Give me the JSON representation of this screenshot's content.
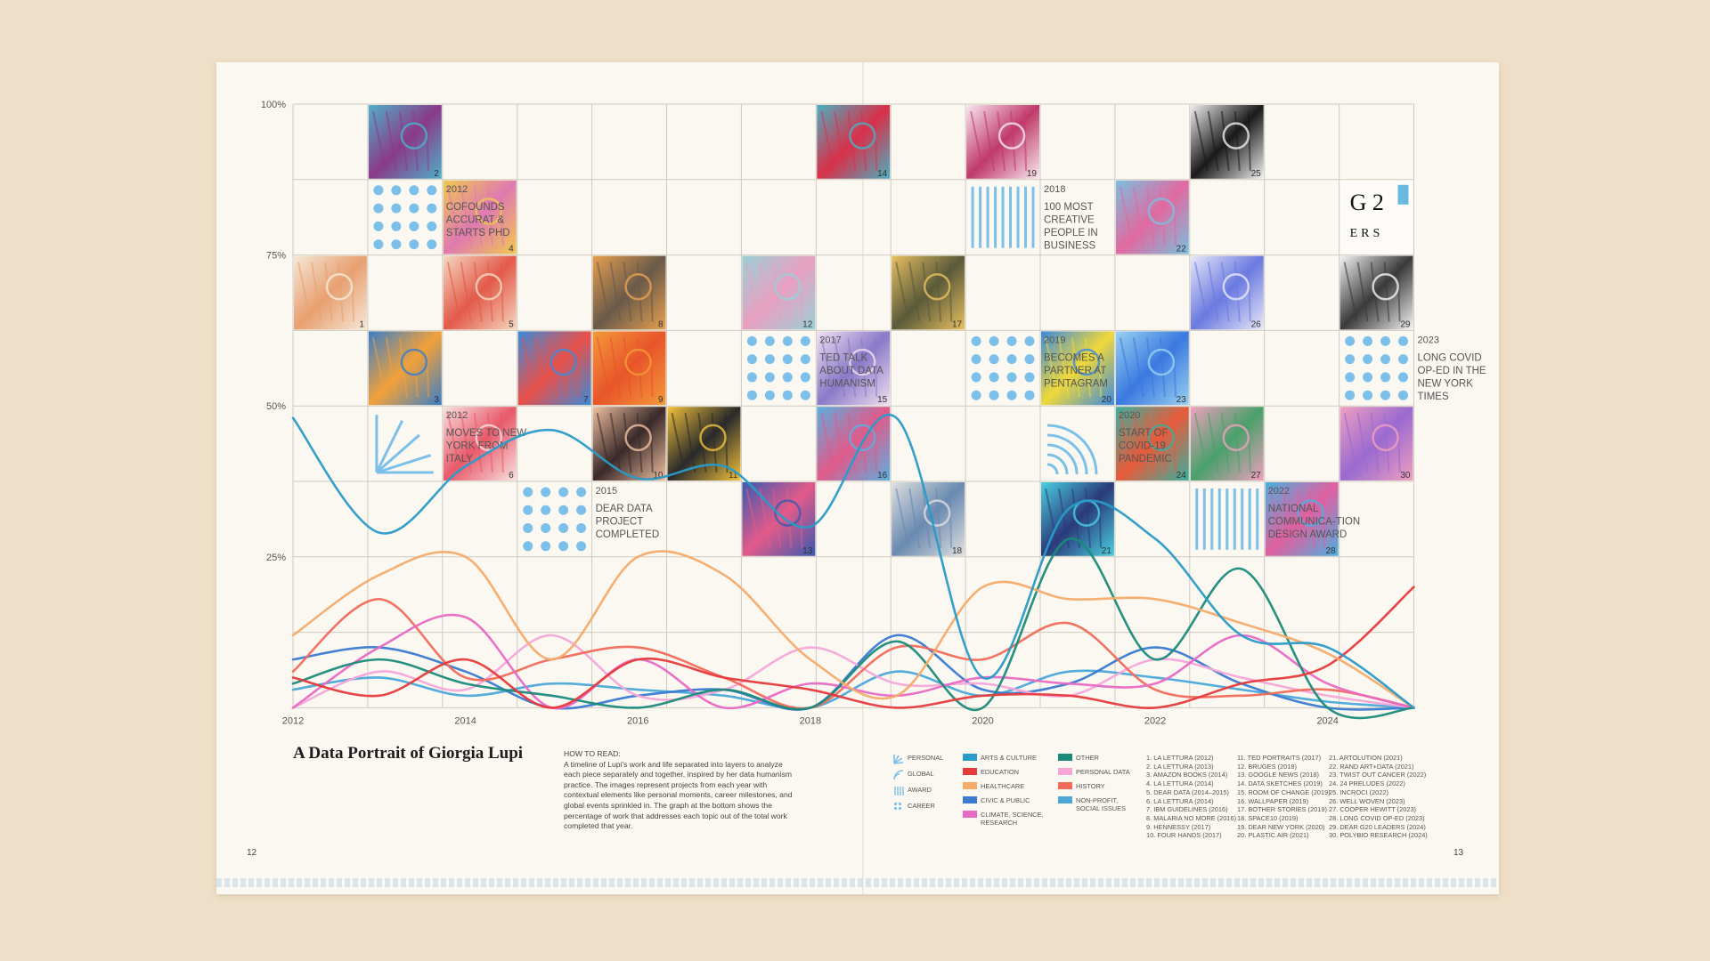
{
  "title": "A Data Portrait of Giorgia Lupi",
  "how_to_read": {
    "heading": "HOW TO READ:",
    "body": "A timeline of Lupi's work and life separated into layers to analyze each piece separately and together, inspired by her data humanism practice. The images represent projects from each year with contextual elements like personal moments, career milestones, and global events sprinkled in. The graph at the bottom shows the percentage of work that addresses each topic out of the total work completed that year."
  },
  "page_numbers": {
    "left": "12",
    "right": "13"
  },
  "milestones": [
    {
      "year": "2012",
      "text": "COFOUNDS ACCURAT & STARTS PHD",
      "col": 1,
      "row": 1,
      "icon": "dots-icon"
    },
    {
      "year": "2012",
      "text": "MOVES TO NEW YORK FROM ITALY",
      "col": 1,
      "row": 4,
      "icon": "fan-icon"
    },
    {
      "year": "2015",
      "text": "DEAR DATA PROJECT COMPLETED",
      "col": 3,
      "row": 5,
      "icon": "dots-icon"
    },
    {
      "year": "2017",
      "text": "TED TALK ABOUT DATA HUMANISM",
      "col": 6,
      "row": 3,
      "icon": "dots-icon"
    },
    {
      "year": "2018",
      "text": "100 MOST CREATIVE PEOPLE IN BUSINESS",
      "col": 9,
      "row": 1,
      "icon": "bars-icon"
    },
    {
      "year": "2019",
      "text": "BECOMES A PARTNER AT PENTAGRAM",
      "col": 9,
      "row": 3,
      "icon": "dots-icon"
    },
    {
      "year": "2020",
      "text": "START OF COVID-19 PANDEMIC",
      "col": 10,
      "row": 4,
      "icon": "arcs-icon"
    },
    {
      "year": "2022",
      "text": "NATIONAL COMMUNICA-TION DESIGN AWARD",
      "col": 12,
      "row": 5,
      "icon": "bars-icon"
    },
    {
      "year": "2023",
      "text": "LONG COVID OP-ED IN THE NEW YORK TIMES",
      "col": 14,
      "row": 3,
      "icon": "dots-icon"
    }
  ],
  "artworks": [
    {
      "n": "1",
      "col": 0,
      "row": 2,
      "c1": "#e8a070",
      "c2": "#f5e8d8"
    },
    {
      "n": "2",
      "col": 1,
      "row": 0,
      "c1": "#8a3a8a",
      "c2": "#4fb0c8"
    },
    {
      "n": "3",
      "col": 1,
      "row": 3,
      "c1": "#f2a13a",
      "c2": "#3a7ec8"
    },
    {
      "n": "4",
      "col": 2,
      "row": 1,
      "c1": "#e07ab0",
      "c2": "#f0c850"
    },
    {
      "n": "5",
      "col": 2,
      "row": 2,
      "c1": "#e35a4a",
      "c2": "#f4d8c0"
    },
    {
      "n": "6",
      "col": 2,
      "row": 4,
      "c1": "#e85a6a",
      "c2": "#f8e0e0"
    },
    {
      "n": "7",
      "col": 3,
      "row": 3,
      "c1": "#e8504a",
      "c2": "#3a8ad8"
    },
    {
      "n": "8",
      "col": 4,
      "row": 2,
      "c1": "#6a5a4a",
      "c2": "#e8a050"
    },
    {
      "n": "9",
      "col": 4,
      "row": 3,
      "c1": "#e8552a",
      "c2": "#f39a3a"
    },
    {
      "n": "10",
      "col": 4,
      "row": 4,
      "c1": "#3a2a2a",
      "c2": "#f0c0a0"
    },
    {
      "n": "11",
      "col": 5,
      "row": 4,
      "c1": "#2a2a2a",
      "c2": "#f3c23a"
    },
    {
      "n": "12",
      "col": 6,
      "row": 2,
      "c1": "#e8a0c0",
      "c2": "#9ad0d8"
    },
    {
      "n": "13",
      "col": 6,
      "row": 5,
      "c1": "#e25a8a",
      "c2": "#3a5ab0"
    },
    {
      "n": "14",
      "col": 7,
      "row": 0,
      "c1": "#d8304a",
      "c2": "#4ab0c0"
    },
    {
      "n": "15",
      "col": 7,
      "row": 3,
      "c1": "#8a7ac8",
      "c2": "#f0e0f0"
    },
    {
      "n": "16",
      "col": 7,
      "row": 4,
      "c1": "#e05a8a",
      "c2": "#5ab0e0"
    },
    {
      "n": "17",
      "col": 8,
      "row": 2,
      "c1": "#5a5a3a",
      "c2": "#e8c060"
    },
    {
      "n": "18",
      "col": 8,
      "row": 5,
      "c1": "#6a8ab0",
      "c2": "#e0e0e0"
    },
    {
      "n": "19",
      "col": 9,
      "row": 0,
      "c1": "#c03a6a",
      "c2": "#f8e8f0"
    },
    {
      "n": "20",
      "col": 10,
      "row": 3,
      "c1": "#f0d83a",
      "c2": "#3a8ae0"
    },
    {
      "n": "21",
      "col": 10,
      "row": 5,
      "c1": "#2a3a7a",
      "c2": "#4ad0e0"
    },
    {
      "n": "22",
      "col": 11,
      "row": 1,
      "c1": "#e06aa0",
      "c2": "#7ac0e0"
    },
    {
      "n": "23",
      "col": 11,
      "row": 3,
      "c1": "#3a7ae0",
      "c2": "#9ad0f0"
    },
    {
      "n": "24",
      "col": 11,
      "row": 4,
      "c1": "#e85a3a",
      "c2": "#3ab0a0"
    },
    {
      "n": "25",
      "col": 12,
      "row": 0,
      "c1": "#1a1a1a",
      "c2": "#f0f0f0"
    },
    {
      "n": "26",
      "col": 12,
      "row": 2,
      "c1": "#6a7ae0",
      "c2": "#e8e8f8"
    },
    {
      "n": "27",
      "col": 12,
      "row": 4,
      "c1": "#4aa06a",
      "c2": "#f0a0c0"
    },
    {
      "n": "28",
      "col": 13,
      "row": 5,
      "c1": "#e060a0",
      "c2": "#4ab0e0"
    },
    {
      "n": "29",
      "col": 14,
      "row": 2,
      "c1": "#3a3a3a",
      "c2": "#f4f4f4"
    },
    {
      "n": "30",
      "col": 14,
      "row": 4,
      "c1": "#9a6ad0",
      "c2": "#f0a0c0"
    }
  ],
  "logo_tile": {
    "text_top": "G 2",
    "text_bottom": "ERS",
    "col": 14,
    "row": 1
  },
  "chart_data": {
    "type": "line",
    "ylabel": "",
    "xlabel": "",
    "ylim": [
      0,
      100
    ],
    "xlim": [
      2012,
      2025
    ],
    "y_ticks": [
      "25%",
      "50%",
      "75%",
      "100%"
    ],
    "y_tick_values": [
      25,
      50,
      75,
      100
    ],
    "x_ticks": [
      "2012",
      "2014",
      "2016",
      "2018",
      "2020",
      "2022",
      "2024"
    ],
    "x_tick_values": [
      2012,
      2014,
      2016,
      2018,
      2020,
      2022,
      2024
    ],
    "x": [
      2012,
      2013,
      2014,
      2015,
      2016,
      2017,
      2018,
      2019,
      2020,
      2021,
      2022,
      2023,
      2024,
      2025
    ],
    "series": [
      {
        "color": "#2a9ac8",
        "values": [
          48,
          29,
          40,
          46,
          38,
          40,
          30,
          48,
          5,
          33,
          28,
          12,
          10,
          0
        ]
      },
      {
        "color": "#f5ab6a",
        "values": [
          12,
          22,
          25,
          8,
          25,
          22,
          8,
          2,
          20,
          18,
          18,
          14,
          9,
          0
        ]
      },
      {
        "color": "#e63a3c",
        "values": [
          5,
          2,
          8,
          0,
          8,
          5,
          3,
          0,
          2,
          2,
          0,
          4,
          7,
          20
        ]
      },
      {
        "color": "#1a8a7a",
        "values": [
          4,
          8,
          4,
          2,
          0,
          3,
          0,
          11,
          0,
          28,
          8,
          23,
          0,
          0
        ]
      },
      {
        "color": "#e86ac4",
        "values": [
          0,
          10,
          15,
          0,
          8,
          0,
          4,
          2,
          5,
          4,
          4,
          12,
          4,
          0
        ]
      },
      {
        "color": "#f26a5a",
        "values": [
          6,
          18,
          5,
          8,
          10,
          5,
          0,
          10,
          8,
          14,
          3,
          2,
          3,
          0
        ]
      },
      {
        "color": "#f5a8d8",
        "values": [
          0,
          6,
          3,
          12,
          2,
          3,
          10,
          4,
          4,
          2,
          8,
          5,
          2,
          0
        ]
      },
      {
        "color": "#3a7ad0",
        "values": [
          8,
          10,
          6,
          0,
          2,
          3,
          0,
          12,
          3,
          4,
          10,
          4,
          0,
          0
        ]
      },
      {
        "color": "#4aa8d8",
        "values": [
          3,
          5,
          2,
          4,
          3,
          2,
          0,
          6,
          2,
          6,
          5,
          3,
          1,
          0
        ]
      }
    ]
  },
  "legend": {
    "layers": [
      {
        "label": "PERSONAL",
        "icon": "fan-icon"
      },
      {
        "label": "GLOBAL",
        "icon": "arcs-icon"
      },
      {
        "label": "AWARD",
        "icon": "bars-icon"
      },
      {
        "label": "CAREER",
        "icon": "dots-icon"
      }
    ],
    "topics": [
      {
        "label": "ARTS & CULTURE",
        "color": "#2a9ac8"
      },
      {
        "label": "EDUCATION",
        "color": "#e63a3c"
      },
      {
        "label": "HEALTHCARE",
        "color": "#f5ab6a"
      },
      {
        "label": "CIVIC & PUBLIC",
        "color": "#3a7ad0"
      },
      {
        "label": "CLIMATE, SCIENCE, RESEARCH",
        "color": "#e86ac4"
      },
      {
        "label": "OTHER",
        "color": "#1a8a7a"
      },
      {
        "label": "PERSONAL DATA",
        "color": "#f5a8d8"
      },
      {
        "label": "HISTORY",
        "color": "#f26a5a"
      },
      {
        "label": "NON-PROFIT, SOCIAL ISSUES",
        "color": "#4aa8d8"
      }
    ],
    "references": [
      [
        "1. LA LETTURA (2012)",
        "2. LA LETTURA (2013)",
        "3. AMAZON BOOKS (2014)",
        "4. LA LETTURA (2014)",
        "5. DEAR DATA (2014–2015)",
        "6. LA LETTURA (2014)",
        "7. IBM GUIDELINES (2016)",
        "8. MALARIA NO MORE (2016)",
        "9. HENNESSY (2017)",
        "10. FOUR HANDS (2017)"
      ],
      [
        "11. TED PORTRAITS (2017)",
        "12. BRUGES (2018)",
        "13. GOOGLE NEWS (2018)",
        "14. DATA SKETCHES (2019)",
        "15. ROOM OF CHANGE (2019)",
        "16. WALLPAPER (2019)",
        "17. BOTHER STORIES (2019)",
        "18. SPACE10 (2019)",
        "19. DEAR NEW YORK (2020)",
        "20. PLASTIC AIR (2021)"
      ],
      [
        "21. ARTOLUTION (2021)",
        "22. RAND ART+DATA (2021)",
        "23. TWIST OUT CANCER (2022)",
        "24. 24 PRELUDES (2022)",
        "25. INCROCI (2022)",
        "26. WELL WOVEN (2023)",
        "27. COOPER HEWITT (2023)",
        "28. LONG COVID OP-ED (2023)",
        "29. DEAR G20 LEADERS (2024)",
        "30. POLYBIO RESEARCH (2024)"
      ]
    ]
  }
}
